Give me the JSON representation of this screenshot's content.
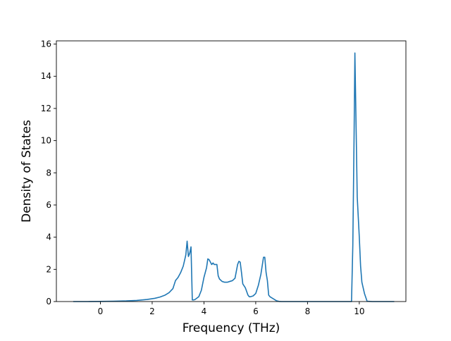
{
  "chart_data": {
    "type": "line",
    "xlabel": "Frequency (THz)",
    "ylabel": "Density of States",
    "xlim": [
      -1.7,
      11.8
    ],
    "ylim": [
      0,
      16.2
    ],
    "xticks": [
      0,
      2,
      4,
      6,
      8,
      10
    ],
    "yticks": [
      0,
      2,
      4,
      6,
      8,
      10,
      12,
      14,
      16
    ],
    "grid": false,
    "line_color": "#1f77b4",
    "series": [
      {
        "x": [
          -1.05,
          -0.5,
          0.0,
          0.5,
          1.0,
          1.4,
          1.8,
          2.1,
          2.3,
          2.5,
          2.65,
          2.8,
          2.9,
          3.0,
          3.1,
          3.2,
          3.3,
          3.35,
          3.4,
          3.45,
          3.5,
          3.55,
          3.6,
          3.65,
          3.8,
          3.9,
          4.0,
          4.1,
          4.15,
          4.2,
          4.3,
          4.35,
          4.4,
          4.5,
          4.55,
          4.6,
          4.7,
          4.8,
          4.9,
          5.0,
          5.1,
          5.2,
          5.3,
          5.35,
          5.4,
          5.45,
          5.5,
          5.6,
          5.7,
          5.75,
          5.8,
          5.9,
          6.0,
          6.1,
          6.2,
          6.3,
          6.35,
          6.4,
          6.45,
          6.5,
          6.55,
          6.6,
          6.7,
          6.8,
          6.9,
          7.0,
          7.5,
          8.0,
          8.5,
          9.0,
          9.5,
          9.7,
          9.75,
          9.8,
          9.83,
          9.87,
          9.92,
          10.0,
          10.05,
          10.1,
          10.2,
          10.3,
          10.5,
          11.0,
          11.35
        ],
        "y": [
          0,
          0,
          0.01,
          0.02,
          0.04,
          0.07,
          0.13,
          0.2,
          0.28,
          0.4,
          0.55,
          0.8,
          1.3,
          1.5,
          1.8,
          2.2,
          2.9,
          3.75,
          2.8,
          3.0,
          3.4,
          0.1,
          0.1,
          0.12,
          0.3,
          0.7,
          1.5,
          2.1,
          2.65,
          2.6,
          2.3,
          2.4,
          2.3,
          2.3,
          1.6,
          1.4,
          1.25,
          1.2,
          1.2,
          1.25,
          1.3,
          1.45,
          2.3,
          2.5,
          2.45,
          1.8,
          1.1,
          0.85,
          0.4,
          0.3,
          0.3,
          0.35,
          0.5,
          1.0,
          1.7,
          2.75,
          2.75,
          1.8,
          1.3,
          0.4,
          0.3,
          0.25,
          0.15,
          0.05,
          0.01,
          0,
          0,
          0,
          0,
          0,
          0,
          0,
          3.5,
          10.5,
          15.45,
          11.5,
          6.5,
          4.0,
          2.2,
          1.2,
          0.5,
          0.02,
          0,
          0,
          0
        ]
      }
    ]
  }
}
